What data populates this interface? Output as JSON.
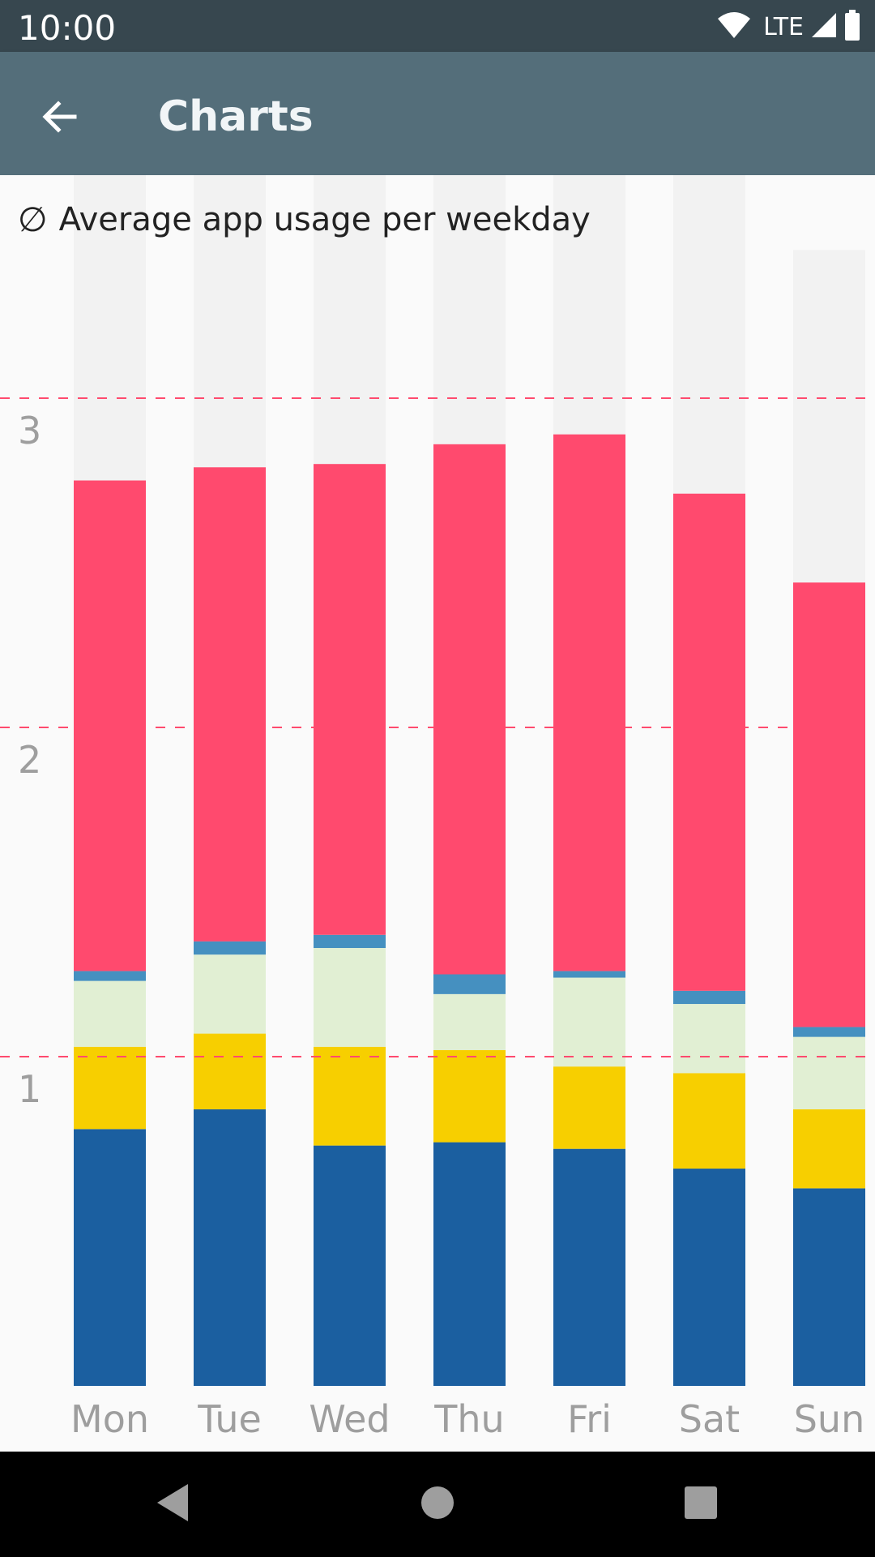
{
  "status_bar": {
    "time": "10:00",
    "network": "LTE",
    "icons": [
      "wifi-icon",
      "cell-signal-icon",
      "battery-icon"
    ]
  },
  "app_bar": {
    "title": "Charts",
    "back_icon": "arrow-back-icon"
  },
  "chart_header": {
    "symbol": "∅",
    "title": "Average app usage per weekday"
  },
  "colors": {
    "status_bar": "#37474f",
    "app_bar": "#546e7a",
    "gridline": "#ff4a6e",
    "bar_background": "#f2f2f2",
    "tick_label": "#9e9e9e"
  },
  "chart_data": {
    "type": "bar",
    "stacked": true,
    "title": "Average app usage per weekday",
    "categories": [
      "Mon",
      "Tue",
      "Wed",
      "Thu",
      "Fri",
      "Sat",
      "Sun"
    ],
    "y_ticks": [
      1,
      2,
      3
    ],
    "ylim": [
      0,
      4.2
    ],
    "gridlines": "dashed at ticks",
    "series": [
      {
        "color": "#1b5fa0",
        "values": [
          0.78,
          0.84,
          0.73,
          0.74,
          0.72,
          0.66,
          0.6
        ]
      },
      {
        "color": "#f7cf00",
        "values": [
          0.25,
          0.23,
          0.3,
          0.28,
          0.25,
          0.29,
          0.24
        ]
      },
      {
        "color": "#e1efd3",
        "values": [
          0.2,
          0.24,
          0.3,
          0.17,
          0.27,
          0.21,
          0.22
        ]
      },
      {
        "color": "#4590c0",
        "values": [
          0.03,
          0.04,
          0.04,
          0.06,
          0.02,
          0.04,
          0.03
        ]
      },
      {
        "color": "#ff4a6e",
        "values": [
          1.49,
          1.44,
          1.43,
          1.61,
          1.63,
          1.51,
          1.35
        ]
      }
    ],
    "max_values": [
      3.76,
      3.8,
      3.8,
      3.86,
      3.88,
      3.71,
      3.45
    ]
  },
  "nav_bar": {
    "back_icon": "nav-back-icon",
    "home_icon": "nav-home-icon",
    "recents_icon": "nav-recents-icon"
  }
}
